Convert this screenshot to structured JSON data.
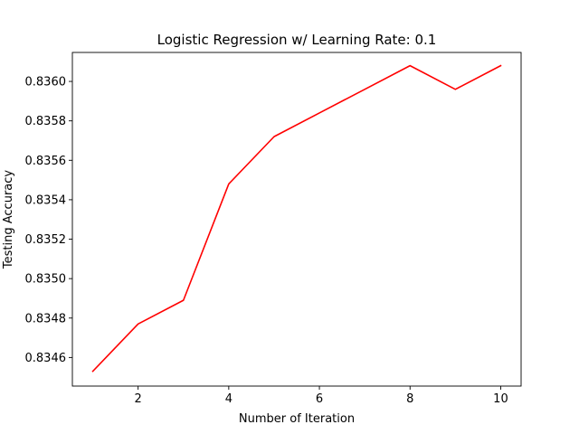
{
  "chart_data": {
    "type": "line",
    "title": "Logistic Regression w/ Learning Rate: 0.1",
    "xlabel": "Number of Iteration",
    "ylabel": "Testing Accuracy",
    "x": [
      1,
      2,
      3,
      4,
      5,
      6,
      7,
      8,
      9,
      10
    ],
    "series": [
      {
        "color": "#ff0000",
        "values": [
          0.83453,
          0.83477,
          0.83489,
          0.83548,
          0.83572,
          0.83584,
          0.83596,
          0.83608,
          0.83596,
          0.83608
        ]
      }
    ],
    "xlim": [
      0.55,
      10.45
    ],
    "ylim": [
      0.834455,
      0.836147
    ],
    "xticks": [
      2,
      4,
      6,
      8,
      10
    ],
    "yticks": [
      0.8346,
      0.8348,
      0.835,
      0.8352,
      0.8354,
      0.8356,
      0.8358,
      0.836
    ],
    "xtick_labels": [
      "2",
      "4",
      "6",
      "8",
      "10"
    ],
    "ytick_labels": [
      "0.8346",
      "0.8348",
      "0.8350",
      "0.8352",
      "0.8354",
      "0.8356",
      "0.8358",
      "0.8360"
    ],
    "grid": false,
    "legend": "none"
  }
}
